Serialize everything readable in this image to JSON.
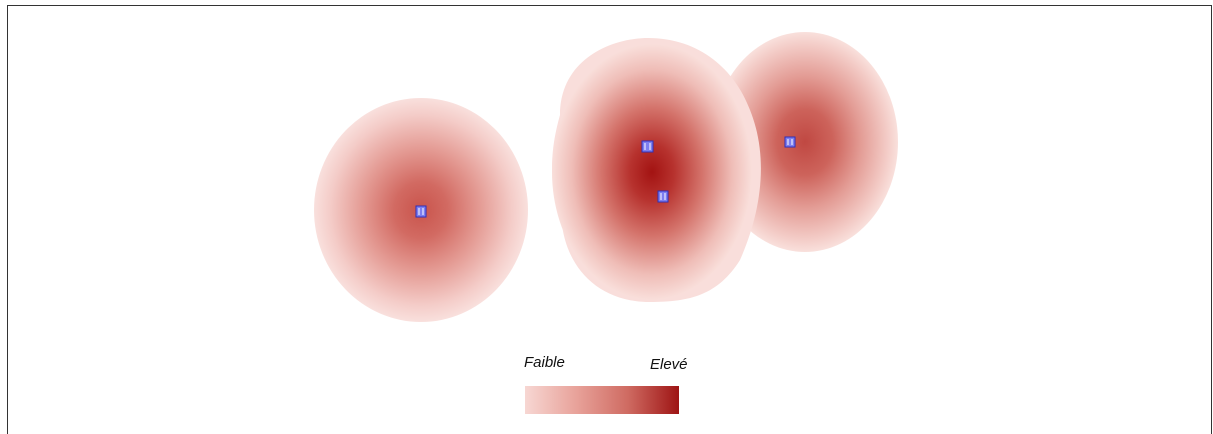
{
  "legend": {
    "low_label": "Faible",
    "high_label": "Elevé",
    "ramp_colors": [
      "#f7d7d3",
      "#e8a29a",
      "#cf6b62",
      "#9e1414"
    ]
  },
  "colors": {
    "core": "#a11010",
    "halo": "#f9dcd8",
    "point_fill": "#7d7ff0",
    "point_stroke": "#2f2fb8"
  },
  "map": {
    "layer": "kernel-density",
    "point_icon": "station-marker-icon",
    "point_count": 4
  }
}
